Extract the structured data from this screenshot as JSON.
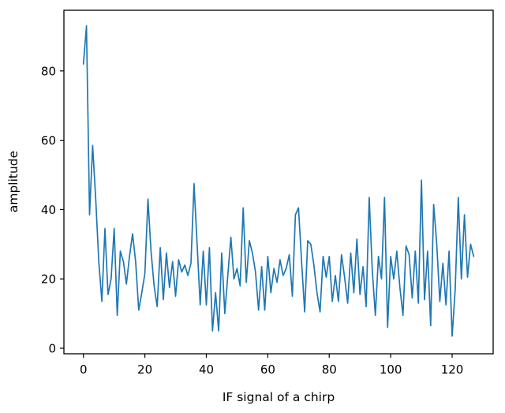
{
  "figure": {
    "background": "#ffffff",
    "line_color": "#1f77b4",
    "spine_color": "#000000"
  },
  "chart_data": {
    "type": "line",
    "title": "",
    "xlabel": "IF signal of a chirp",
    "ylabel": "amplitude",
    "x_start": 0,
    "x_step": 1,
    "n_points": 128,
    "values": [
      82,
      93,
      38.5,
      58.5,
      43,
      25,
      13.5,
      34.5,
      15.5,
      20,
      34.5,
      9.5,
      28,
      25,
      18.5,
      26.5,
      33,
      25,
      11,
      16,
      21.5,
      43,
      28,
      18,
      12,
      29,
      14,
      27.5,
      17.5,
      25,
      15,
      25.5,
      22,
      24,
      21,
      24.5,
      47.5,
      30,
      12.5,
      28,
      12.5,
      29,
      5,
      16,
      5,
      27.5,
      10,
      21,
      32,
      20,
      23,
      18,
      40.5,
      19,
      31,
      27.5,
      22,
      11,
      23.5,
      11,
      26.5,
      16,
      23,
      19,
      25.5,
      21,
      23,
      27,
      15,
      38.5,
      40.5,
      25,
      10.5,
      31,
      30,
      24,
      16,
      10.5,
      26.5,
      20.5,
      26.5,
      13.5,
      21,
      13.5,
      27,
      20.5,
      13,
      27.5,
      16,
      31.5,
      15.5,
      23.5,
      12,
      43.5,
      22.5,
      9.5,
      26.5,
      20,
      43.5,
      6,
      26.5,
      20,
      28,
      17.5,
      9.5,
      29.5,
      27,
      14.5,
      28,
      13,
      48.5,
      14,
      28,
      6.5,
      41.5,
      30,
      13.5,
      24.5,
      12.5,
      28,
      3.5,
      17,
      43.5,
      20,
      38.5,
      20.5,
      30,
      26.5
    ],
    "xticks": [
      0,
      20,
      40,
      60,
      80,
      100,
      120
    ],
    "yticks": [
      0,
      20,
      40,
      60,
      80
    ],
    "xlim": [
      -6.35,
      133.35
    ],
    "ylim": [
      -1.6,
      97.5
    ],
    "grid": false,
    "legend": null
  }
}
